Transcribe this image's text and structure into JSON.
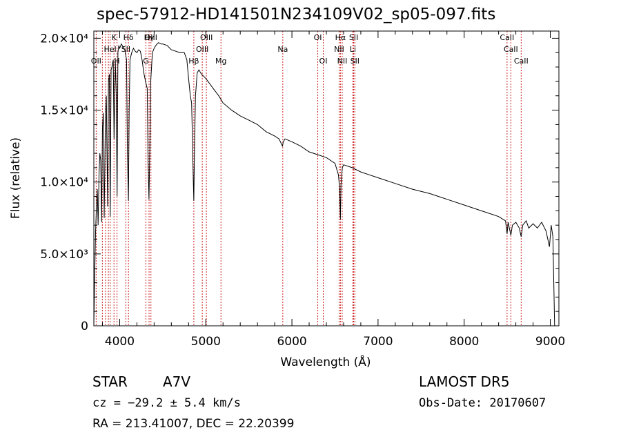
{
  "chart_data": {
    "type": "line",
    "title": "spec-57912-HD141501N234109V02_sp05-097.fits",
    "xlabel": "Wavelength (Å)",
    "ylabel": "Flux (relative)",
    "xlim": [
      3700,
      9100
    ],
    "ylim": [
      0,
      20500
    ],
    "xticks": [
      4000,
      5000,
      6000,
      7000,
      8000,
      9000
    ],
    "xtick_labels": [
      "4000",
      "5000",
      "6000",
      "7000",
      "8000",
      "9000"
    ],
    "yticks": [
      0,
      5000,
      10000,
      15000,
      20000
    ],
    "ytick_labels": [
      "0",
      "5.0×10³",
      "1.0×10⁴",
      "1.5×10⁴",
      "2.0×10⁴"
    ],
    "grid": false,
    "series": [
      {
        "x": [
          3700,
          3710,
          3720,
          3730,
          3740,
          3750,
          3760,
          3770,
          3780,
          3790,
          3800,
          3810,
          3820,
          3835,
          3845,
          3860,
          3870,
          3880,
          3890,
          3900,
          3910,
          3925,
          3935,
          3950,
          3960,
          3970,
          3980,
          3990,
          4000,
          4020,
          4040,
          4060,
          4080,
          4090,
          4101,
          4110,
          4120,
          4140,
          4160,
          4180,
          4200,
          4220,
          4240,
          4260,
          4280,
          4300,
          4320,
          4330,
          4340,
          4350,
          4360,
          4380,
          4400,
          4420,
          4450,
          4480,
          4500,
          4550,
          4600,
          4650,
          4700,
          4750,
          4780,
          4800,
          4820,
          4835,
          4845,
          4855,
          4861,
          4868,
          4880,
          4900,
          4920,
          4950,
          5000,
          5050,
          5100,
          5150,
          5200,
          5300,
          5400,
          5500,
          5600,
          5700,
          5800,
          5850,
          5890,
          5900,
          5920,
          6000,
          6100,
          6200,
          6300,
          6400,
          6450,
          6500,
          6540,
          6555,
          6563,
          6570,
          6585,
          6600,
          6700,
          6800,
          6900,
          7000,
          7200,
          7400,
          7600,
          7700,
          7800,
          8000,
          8200,
          8400,
          8480,
          8498,
          8510,
          8542,
          8560,
          8600,
          8640,
          8662,
          8680,
          8720,
          8750,
          8800,
          8850,
          8900,
          8950,
          8990,
          9010,
          9030,
          9050
        ],
        "y": [
          0,
          3500,
          6500,
          8200,
          9500,
          7000,
          10500,
          12000,
          11500,
          7200,
          13800,
          14800,
          7500,
          14500,
          16000,
          8300,
          17000,
          17500,
          7600,
          17800,
          18000,
          18500,
          13000,
          18400,
          16000,
          9000,
          19000,
          19500,
          19300,
          19600,
          19400,
          19200,
          18500,
          12000,
          8700,
          15000,
          18500,
          19000,
          19300,
          19100,
          19000,
          19200,
          19100,
          18500,
          17600,
          17000,
          16500,
          11500,
          8800,
          12000,
          17000,
          19000,
          19300,
          19500,
          19700,
          19600,
          19600,
          19500,
          19200,
          19100,
          19000,
          19000,
          18500,
          17200,
          16000,
          15500,
          13000,
          10000,
          8700,
          12000,
          16000,
          17600,
          17800,
          17500,
          17200,
          16800,
          16400,
          16000,
          15500,
          15000,
          14600,
          14300,
          14000,
          13500,
          13200,
          13000,
          12500,
          12800,
          13000,
          12800,
          12500,
          12100,
          11900,
          11700,
          11500,
          11300,
          10500,
          9500,
          7400,
          9800,
          11000,
          11200,
          11000,
          10700,
          10500,
          10300,
          9900,
          9500,
          9200,
          9000,
          8800,
          8400,
          8000,
          7600,
          7300,
          6400,
          7200,
          6300,
          7000,
          7200,
          6800,
          6200,
          7000,
          7300,
          6800,
          7100,
          6800,
          7200,
          6600,
          5500,
          7000,
          6200,
          0
        ]
      }
    ],
    "line_labels": [
      {
        "name": "Hδ",
        "x": 4102,
        "row": 1
      },
      {
        "name": "OII",
        "x": 3727,
        "row": 3
      },
      {
        "name": "K",
        "x": 3934,
        "row": 1
      },
      {
        "name": "H",
        "x": 3969,
        "row": 3
      },
      {
        "name": "HeI",
        "x": 3889,
        "row": 2
      },
      {
        "name": "SII",
        "x": 4072,
        "row": 2
      },
      {
        "name": "Hγ",
        "x": 4341,
        "row": 1
      },
      {
        "name": "OIII",
        "x": 4363,
        "row": 1
      },
      {
        "name": "G",
        "x": 4305,
        "row": 3
      },
      {
        "name": "Hβ",
        "x": 4861,
        "row": 3
      },
      {
        "name": "OIII",
        "x": 4959,
        "row": 2
      },
      {
        "name": "OIII",
        "x": 5007,
        "row": 1
      },
      {
        "name": "Mg",
        "x": 5176,
        "row": 3
      },
      {
        "name": "Na",
        "x": 5894,
        "row": 2
      },
      {
        "name": "OI",
        "x": 6300,
        "row": 1
      },
      {
        "name": "OI",
        "x": 6364,
        "row": 3
      },
      {
        "name": "Hα",
        "x": 6563,
        "row": 1
      },
      {
        "name": "NII",
        "x": 6548,
        "row": 2
      },
      {
        "name": "NII",
        "x": 6584,
        "row": 3
      },
      {
        "name": "SII",
        "x": 6717,
        "row": 1
      },
      {
        "name": "Li",
        "x": 6708,
        "row": 2
      },
      {
        "name": "SII",
        "x": 6731,
        "row": 3
      },
      {
        "name": "CaII",
        "x": 8498,
        "row": 1
      },
      {
        "name": "CaII",
        "x": 8542,
        "row": 2
      },
      {
        "name": "CaII",
        "x": 8662,
        "row": 3
      }
    ],
    "line_marker_color": "#cc2222",
    "line_marker_wavelengths": [
      3727,
      3799,
      3835,
      3869,
      3889,
      3934,
      3969,
      4072,
      4102,
      4305,
      4341,
      4363,
      4861,
      4959,
      5007,
      5176,
      5894,
      6300,
      6364,
      6548,
      6563,
      6584,
      6708,
      6717,
      6731,
      8498,
      8542,
      8662
    ]
  },
  "object": {
    "class": "STAR",
    "subclass": "A7V",
    "survey": "LAMOST  DR5",
    "redshift_line": "cz = −29.2 ± 5.4 km/s",
    "obs_date": "Obs-Date: 20170607",
    "coords": "RA = 213.41007, DEC =  22.20399"
  }
}
